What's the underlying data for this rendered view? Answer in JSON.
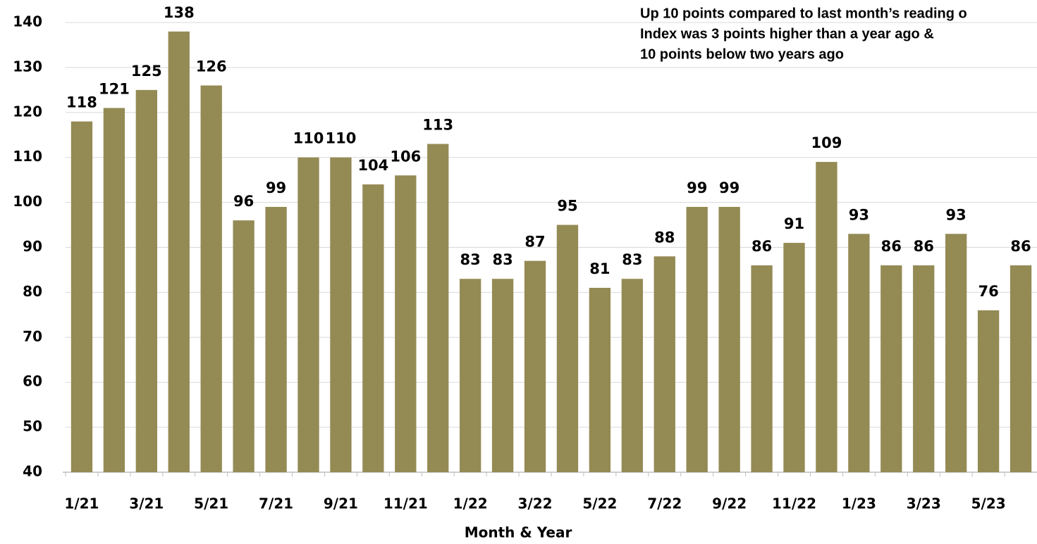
{
  "chart_data": {
    "type": "bar",
    "x_label": "Month & Year",
    "annotations": [
      "Up 10 points compared to last month’s reading o",
      "Index was 3 points higher than a year ago &",
      "10 points below two years ago"
    ],
    "categories": [
      "1/21",
      null,
      "3/21",
      null,
      "5/21",
      null,
      "7/21",
      null,
      "9/21",
      null,
      "11/21",
      null,
      "1/22",
      null,
      "3/22",
      null,
      "5/22",
      null,
      "7/22",
      null,
      "9/22",
      null,
      "11/22",
      null,
      "1/23",
      null,
      "3/23",
      null,
      "5/23",
      null
    ],
    "values": [
      118,
      121,
      125,
      138,
      126,
      96,
      99,
      110,
      110,
      104,
      106,
      113,
      83,
      83,
      87,
      95,
      81,
      83,
      88,
      99,
      99,
      86,
      91,
      109,
      93,
      86,
      86,
      93,
      76,
      86
    ],
    "color": "#948a54",
    "ylim": [
      40,
      140
    ],
    "yticks": [
      40,
      50,
      60,
      70,
      80,
      90,
      100,
      110,
      120,
      130,
      140
    ],
    "grid": true
  }
}
